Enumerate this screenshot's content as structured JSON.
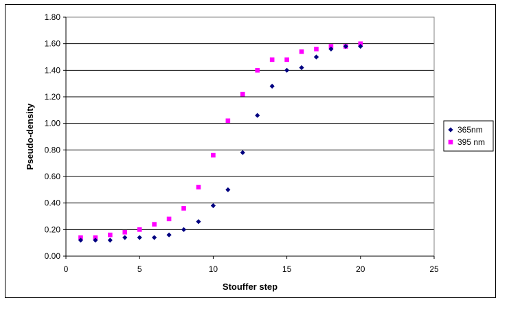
{
  "chart_data": {
    "type": "scatter",
    "title": "",
    "xlabel": "Stouffer step",
    "ylabel": "Pseudo-density",
    "xlim": [
      0,
      25
    ],
    "ylim": [
      0,
      1.8
    ],
    "x_ticks": [
      "0",
      "5",
      "10",
      "15",
      "20",
      "25"
    ],
    "y_ticks": [
      "0.00",
      "0.20",
      "0.40",
      "0.60",
      "0.80",
      "1.00",
      "1.20",
      "1.40",
      "1.60",
      "1.80"
    ],
    "grid": "horizontal",
    "legend_position": "right",
    "series": [
      {
        "name": "365nm",
        "marker": "diamond",
        "color": "#000080",
        "points": [
          [
            1,
            0.12
          ],
          [
            2,
            0.12
          ],
          [
            3,
            0.12
          ],
          [
            4,
            0.14
          ],
          [
            5,
            0.14
          ],
          [
            6,
            0.14
          ],
          [
            7,
            0.16
          ],
          [
            8,
            0.2
          ],
          [
            9,
            0.26
          ],
          [
            10,
            0.38
          ],
          [
            11,
            0.5
          ],
          [
            12,
            0.78
          ],
          [
            13,
            1.06
          ],
          [
            14,
            1.28
          ],
          [
            15,
            1.4
          ],
          [
            16,
            1.42
          ],
          [
            17,
            1.5
          ],
          [
            18,
            1.56
          ],
          [
            19,
            1.58
          ],
          [
            20,
            1.58
          ]
        ]
      },
      {
        "name": "395 nm",
        "marker": "square",
        "color": "#ff00ff",
        "points": [
          [
            1,
            0.14
          ],
          [
            2,
            0.14
          ],
          [
            3,
            0.16
          ],
          [
            4,
            0.18
          ],
          [
            5,
            0.2
          ],
          [
            6,
            0.24
          ],
          [
            7,
            0.28
          ],
          [
            8,
            0.36
          ],
          [
            9,
            0.52
          ],
          [
            10,
            0.76
          ],
          [
            11,
            1.02
          ],
          [
            12,
            1.22
          ],
          [
            13,
            1.4
          ],
          [
            14,
            1.48
          ],
          [
            15,
            1.48
          ],
          [
            16,
            1.54
          ],
          [
            17,
            1.56
          ],
          [
            18,
            1.58
          ],
          [
            19,
            1.58
          ],
          [
            20,
            1.6
          ]
        ]
      }
    ]
  }
}
